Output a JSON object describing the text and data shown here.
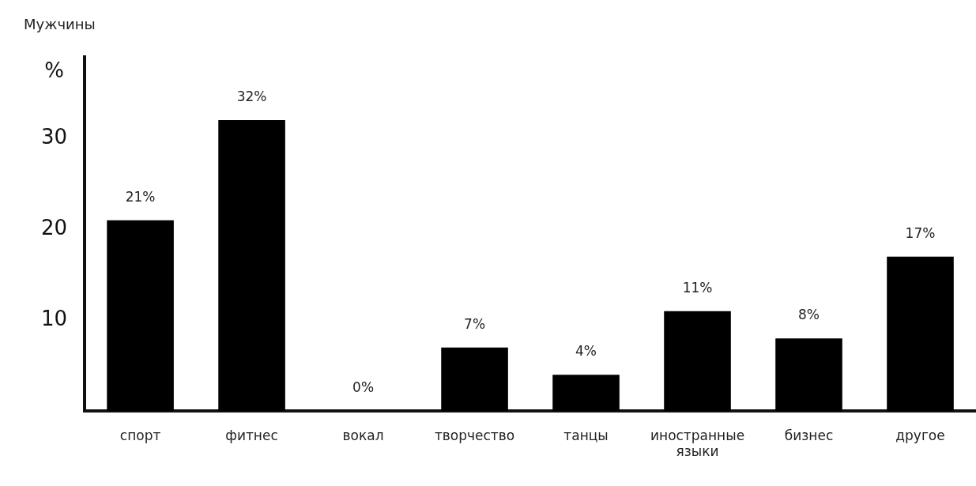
{
  "chart_data": {
    "type": "bar",
    "title": "Мужчины",
    "ylabel": "%",
    "categories": [
      "спорт",
      "фитнес",
      "вокал",
      "творчество",
      "танцы",
      "иностранные языки",
      "бизнес",
      "другое"
    ],
    "values": [
      21,
      32,
      0,
      7,
      4,
      11,
      8,
      17
    ],
    "value_labels": [
      "21%",
      "32%",
      "0%",
      "7%",
      "4%",
      "11%",
      "8%",
      "17%"
    ],
    "color": "#000000",
    "ylim": [
      0,
      39
    ],
    "yticks": [
      10,
      20,
      30
    ],
    "grid": false,
    "legend": false
  }
}
